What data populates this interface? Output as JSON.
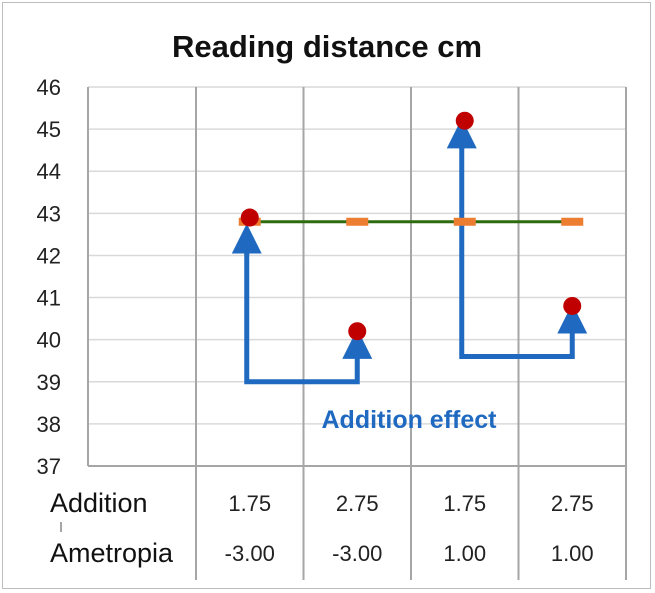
{
  "chart_data": {
    "type": "scatter",
    "title": "Reading distance cm",
    "ylim": [
      37,
      46
    ],
    "yticks": [
      37,
      38,
      39,
      40,
      41,
      42,
      43,
      44,
      45,
      46
    ],
    "grid": true,
    "table_rows": [
      {
        "label": "Addition",
        "values": [
          "1.75",
          "2.75",
          "1.75",
          "2.75"
        ]
      },
      {
        "label": "Ametropia",
        "values": [
          "-3.00",
          "-3.00",
          "1.00",
          "1.00"
        ]
      }
    ],
    "series": [
      {
        "values": [
          42.9,
          40.2,
          45.2,
          40.8
        ],
        "marker": "circle",
        "color": "#c00000"
      },
      {
        "values": [
          42.8,
          42.8,
          42.8,
          42.8
        ],
        "marker": "dash",
        "color": "#ed7d31"
      },
      {
        "values": [
          42.8,
          42.8,
          42.8,
          42.8
        ],
        "marker": "line",
        "color": "#2e6b0f"
      }
    ],
    "annotations": [
      {
        "text": "Addition effect",
        "color": "#1f6ac0"
      }
    ],
    "arrows": [
      {
        "from_category": 0,
        "to_category": 1,
        "base_y": 39.0,
        "from_y": 42.4,
        "to_y": 39.9,
        "color": "#1f6ac0"
      },
      {
        "from_category": 2,
        "to_category": 3,
        "base_y": 39.6,
        "from_y": 44.9,
        "to_y": 40.5,
        "color": "#1f6ac0"
      }
    ]
  }
}
